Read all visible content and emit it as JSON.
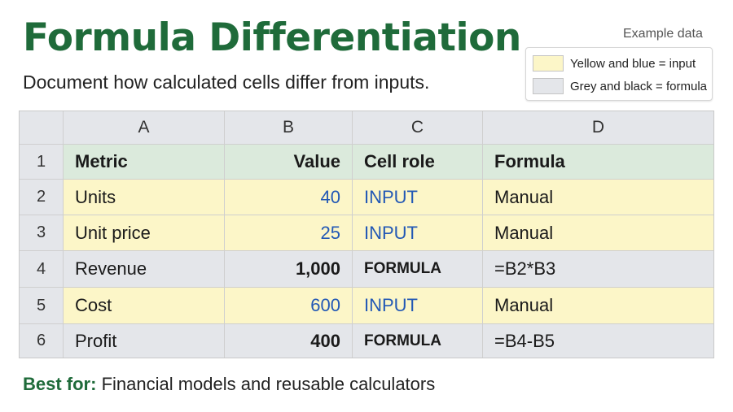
{
  "title": "Formula Differentiation",
  "subtitle": "Document how calculated cells differ from inputs.",
  "legend": {
    "heading": "Example data",
    "items": [
      {
        "label": "Yellow and blue = input",
        "color": "#fcf6c8"
      },
      {
        "label": "Grey and black = formula",
        "color": "#e4e6ea"
      }
    ]
  },
  "colors": {
    "title_green": "#1f6b3a",
    "input_fill": "#fcf6c8",
    "formula_fill": "#e4e6ea",
    "header_fill": "#dbeadc",
    "input_text_blue": "#2258b5"
  },
  "sheet": {
    "column_letters": [
      "A",
      "B",
      "C",
      "D"
    ],
    "row_numbers": [
      "1",
      "2",
      "3",
      "4",
      "5",
      "6"
    ],
    "header": [
      "Metric",
      "Value",
      "Cell role",
      "Formula"
    ],
    "rows": [
      {
        "metric": "Units",
        "value": "40",
        "role": "INPUT",
        "formula": "Manual"
      },
      {
        "metric": "Unit price",
        "value": "25",
        "role": "INPUT",
        "formula": "Manual"
      },
      {
        "metric": "Revenue",
        "value": "1,000",
        "role": "FORMULA",
        "formula": "=B2*B3"
      },
      {
        "metric": "Cost",
        "value": "600",
        "role": "INPUT",
        "formula": "Manual"
      },
      {
        "metric": "Profit",
        "value": "400",
        "role": "FORMULA",
        "formula": "=B4-B5"
      }
    ]
  },
  "footer": {
    "lead": "Best for:",
    "text": " Financial models and reusable calculators"
  }
}
